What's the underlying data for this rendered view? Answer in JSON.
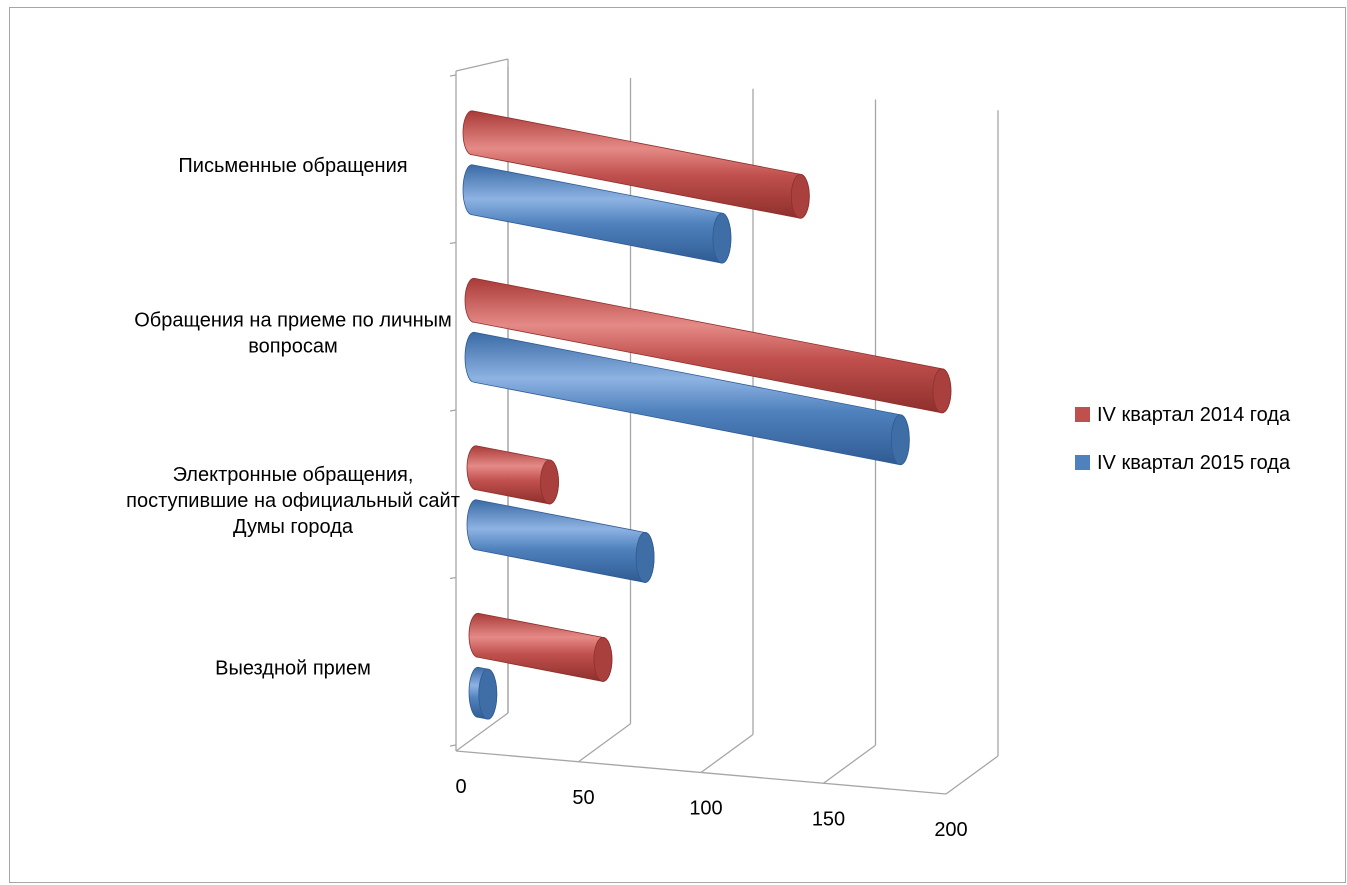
{
  "chart_data": {
    "type": "bar",
    "orientation": "horizontal",
    "style": "3d-cylinder",
    "title": "",
    "xlabel": "",
    "ylabel": "",
    "xlim": [
      0,
      200
    ],
    "x_ticks": [
      "0",
      "50",
      "100",
      "150",
      "200"
    ],
    "grid": true,
    "legend_position": "right",
    "categories": [
      "Письменные обращения",
      "Обращения на приеме по личным вопросам",
      "Электронные обращения, поступившие на официальный сайт Думы города",
      "Выездной прием"
    ],
    "category_lines": [
      [
        "Письменные обращения"
      ],
      [
        "Обращения на приеме по личным",
        "вопросам"
      ],
      [
        "Электронные обращения,",
        "поступившие на официальный сайт",
        "Думы города"
      ],
      [
        "Выездной прием"
      ]
    ],
    "series": [
      {
        "name": "IV квартал 2014 года",
        "color": "#c0504d",
        "values": [
          134,
          191,
          30,
          51
        ]
      },
      {
        "name": "IV квартал 2015 года",
        "color": "#4f81bd",
        "values": [
          102,
          174,
          69,
          4
        ]
      }
    ]
  }
}
